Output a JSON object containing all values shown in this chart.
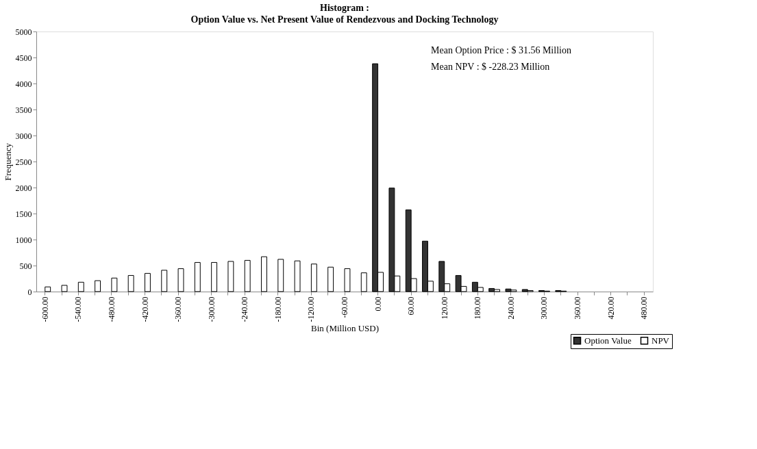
{
  "chart_data": {
    "type": "bar",
    "title": "Histogram :",
    "subtitle": "Option Value vs. Net Present Value of Rendezvous and Docking Technology",
    "xlabel": "Bin (Million USD)",
    "ylabel": "Frequency",
    "categories": [
      "-600.00",
      null,
      "-540.00",
      null,
      "-480.00",
      null,
      "-420.00",
      null,
      "-360.00",
      null,
      "-300.00",
      null,
      "-240.00",
      null,
      "-180.00",
      null,
      "-120.00",
      null,
      "-60.00",
      null,
      "0.00",
      null,
      "60.00",
      null,
      "120.00",
      null,
      "180.00",
      null,
      "240.00",
      null,
      "300.00",
      null,
      "360.00",
      null,
      "420.00",
      null,
      "480.00"
    ],
    "series": [
      {
        "name": "Option Value",
        "color": "#333333",
        "values": [
          0,
          0,
          0,
          0,
          0,
          0,
          0,
          0,
          0,
          0,
          0,
          0,
          0,
          0,
          0,
          0,
          0,
          0,
          0,
          0,
          4380,
          1990,
          1570,
          970,
          580,
          310,
          180,
          60,
          50,
          40,
          20,
          20,
          0,
          0,
          0,
          0,
          0
        ]
      },
      {
        "name": "NPV",
        "color": "#ffffff",
        "values": [
          90,
          120,
          180,
          210,
          260,
          310,
          350,
          410,
          440,
          560,
          560,
          580,
          600,
          670,
          620,
          590,
          530,
          470,
          440,
          360,
          370,
          300,
          250,
          200,
          150,
          100,
          80,
          40,
          30,
          20,
          10,
          10,
          0,
          0,
          0,
          0,
          0
        ]
      }
    ],
    "ylim": [
      0,
      5000
    ],
    "yticks": [
      0,
      500,
      1000,
      1500,
      2000,
      2500,
      3000,
      3500,
      4000,
      4500,
      5000
    ],
    "annotations": [
      "Mean Option Price : $ 31.56 Million",
      "Mean NPV : $ -228.23 Million"
    ],
    "legend": "bottom right",
    "grid": false
  }
}
